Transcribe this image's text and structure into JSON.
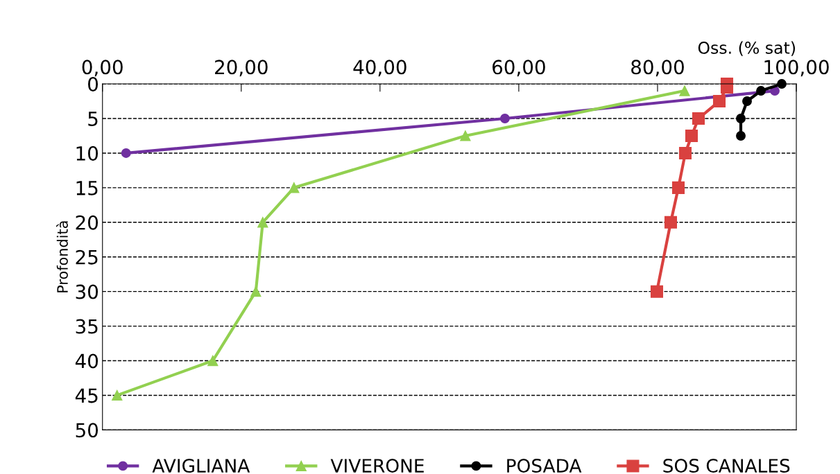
{
  "chart_data": {
    "type": "line",
    "xlabel": "Oss. (% sat)",
    "ylabel": "Profondità",
    "xlim": [
      0,
      100
    ],
    "xticks": [
      {
        "value": 0,
        "label": "0,00"
      },
      {
        "value": 20,
        "label": "20,00"
      },
      {
        "value": 40,
        "label": "40,00"
      },
      {
        "value": 60,
        "label": "60,00"
      },
      {
        "value": 80,
        "label": "80,00"
      },
      {
        "value": 100,
        "label": "100,00"
      }
    ],
    "ylim": [
      50,
      0
    ],
    "yticks": [
      0,
      5,
      10,
      15,
      20,
      25,
      30,
      35,
      40,
      45,
      50
    ],
    "grid": "y",
    "legend": "bottom",
    "series": [
      {
        "name": "AVIGLIANA",
        "color": "#7030a0",
        "marker": "circle",
        "x": [
          96.9,
          58.0,
          3.4
        ],
        "values": [
          1,
          5,
          10
        ]
      },
      {
        "name": "VIVERONE",
        "color": "#92d050",
        "marker": "triangle",
        "x": [
          83.9,
          52.3,
          27.6,
          23.1,
          22.1,
          15.9,
          2.1
        ],
        "values": [
          1,
          7.5,
          15,
          20,
          30,
          40,
          45
        ]
      },
      {
        "name": "POSADA",
        "color": "#000000",
        "marker": "circle",
        "x": [
          97.9,
          94.9,
          92.9,
          92.0,
          92.0
        ],
        "values": [
          0,
          1,
          2.5,
          5,
          7.5
        ]
      },
      {
        "name": "SOS CANALES",
        "color": "#d9413f",
        "marker": "square",
        "x": [
          90.0,
          90.0,
          88.9,
          85.9,
          84.9,
          84.0,
          83.0,
          81.9,
          79.9
        ],
        "values": [
          0,
          0.5,
          2.5,
          5,
          7.5,
          10,
          15,
          20,
          30
        ]
      }
    ]
  }
}
